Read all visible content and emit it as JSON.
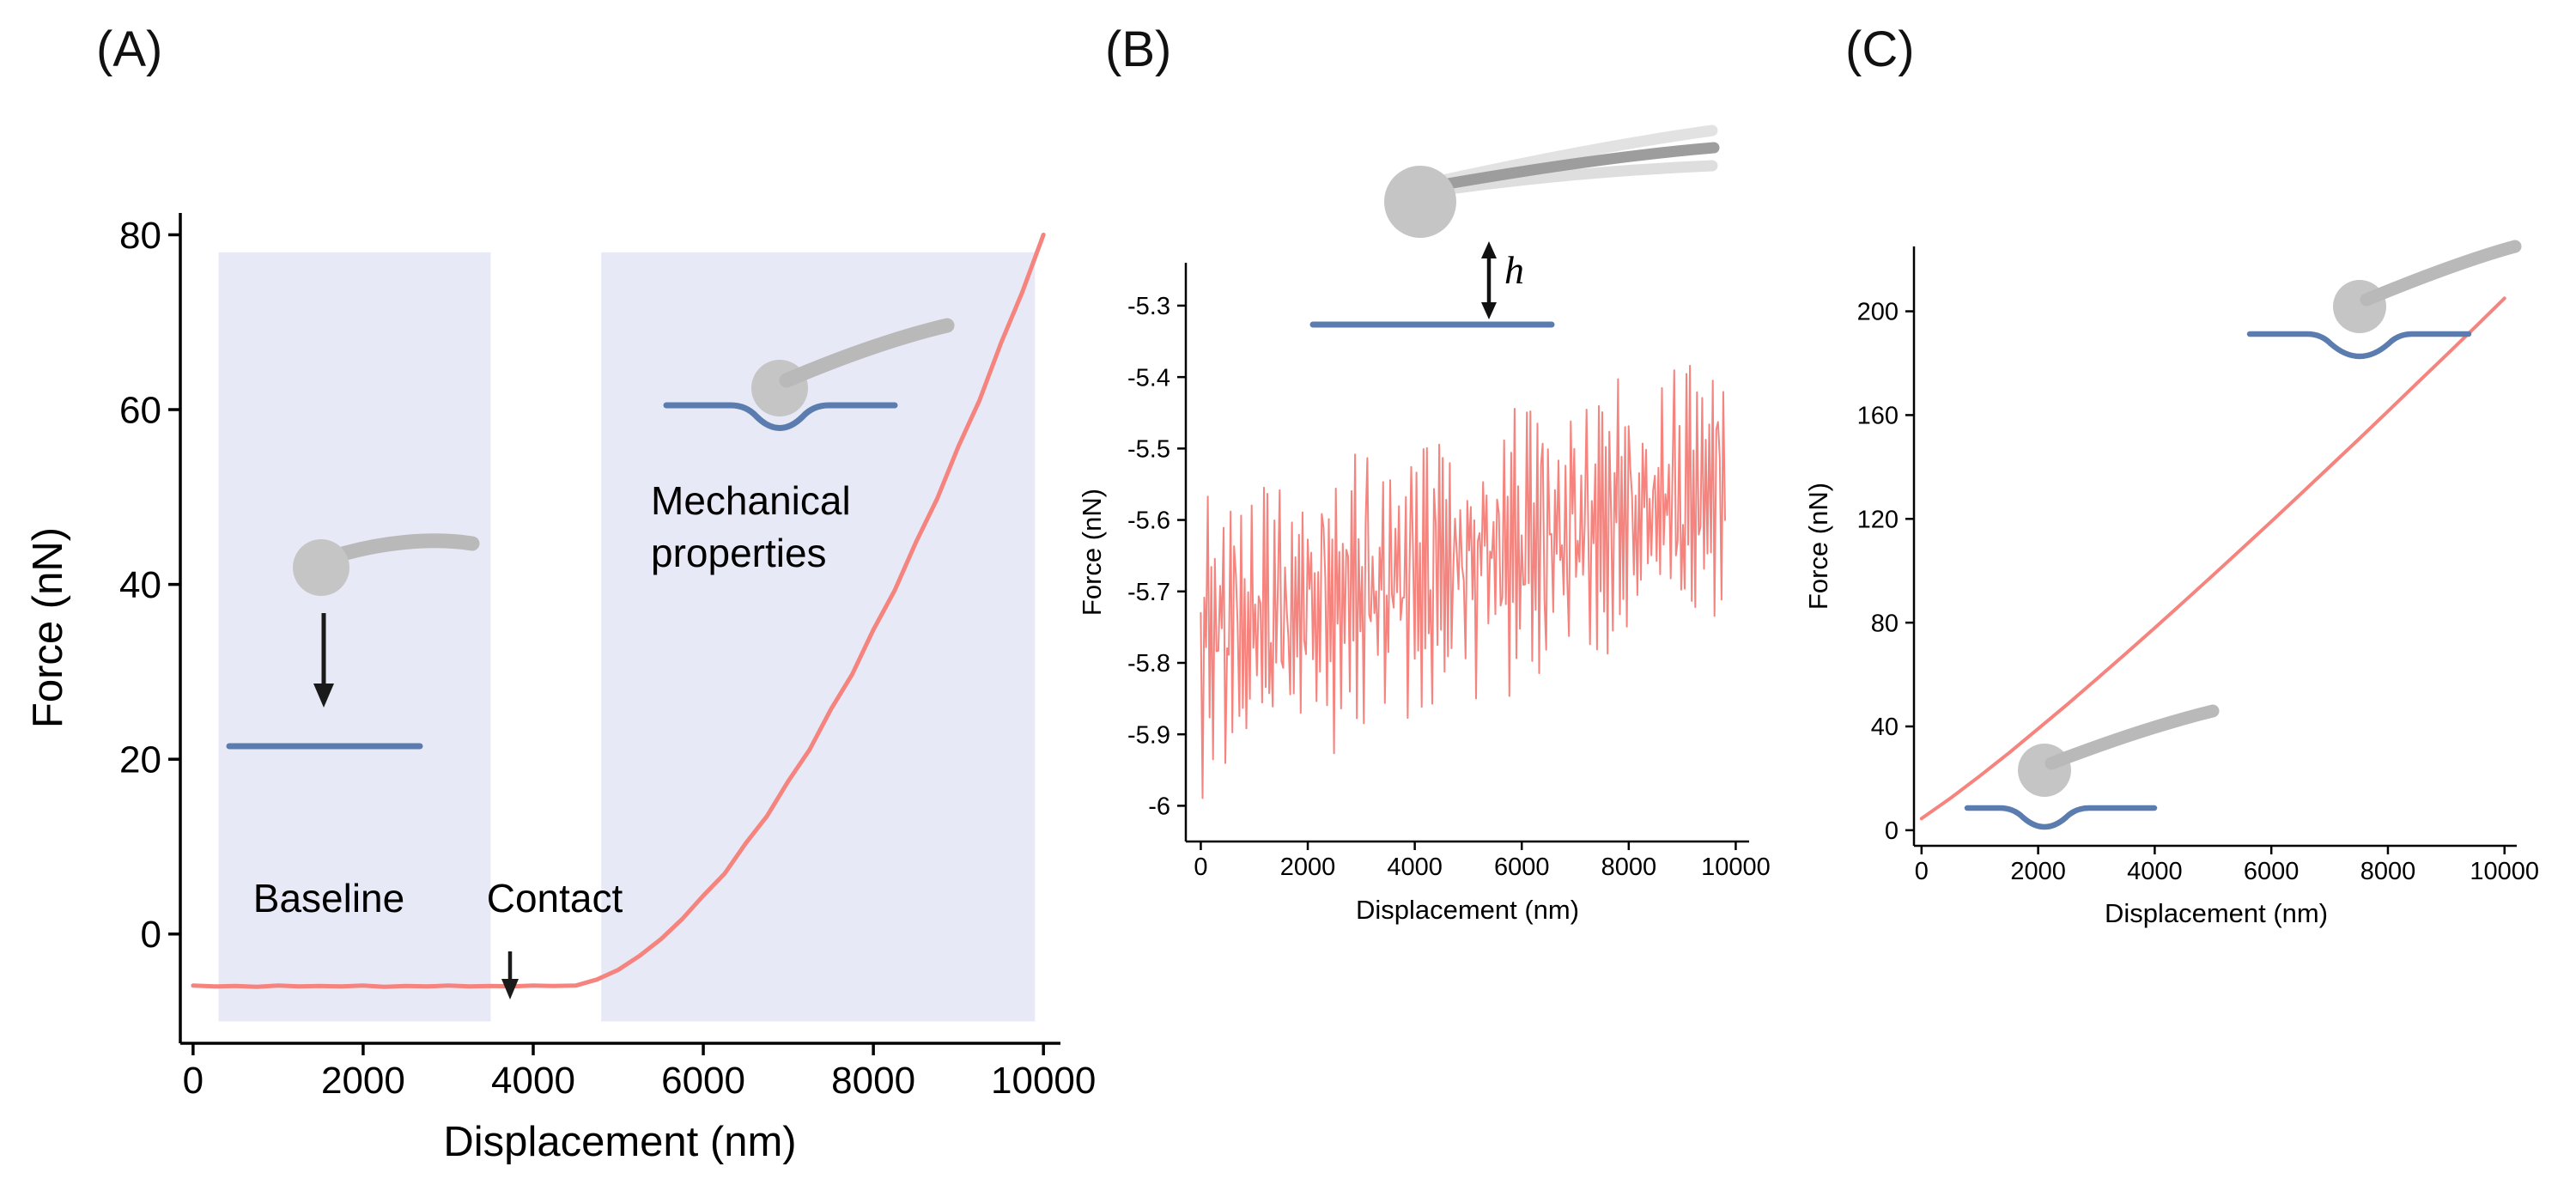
{
  "figure": {
    "background": "#ffffff",
    "colors": {
      "curve": "#f5837e",
      "shaded_region": "#e7eaf6",
      "surface_blue": "#5b7cae",
      "cantilever_gray": "#b9b9b9",
      "cantilever_ghost_gray": "#e2e2e2",
      "cantilever_dark_gray": "#9d9d9d",
      "sphere_gray": "#c5c5c5",
      "axis_black": "#000000"
    },
    "icons": {
      "panel_a": [
        "cantilever-sphere-approach-icon",
        "approach-down-arrow-icon",
        "flat-surface-line-icon",
        "cantilever-sphere-indent-icon",
        "indented-surface-curve-icon",
        "contact-down-arrow-icon"
      ],
      "panel_b": [
        "cantilever-sphere-vibrating-icon",
        "height-h-double-arrow-icon",
        "flat-surface-line-icon"
      ],
      "panel_c": [
        "cantilever-sphere-indent-icon",
        "indented-surface-curve-icon",
        "cantilever-sphere-resting-icon"
      ]
    }
  },
  "chart_data": [
    {
      "id": "A",
      "type": "line",
      "panel_label": "(A)",
      "xlabel": "Displacement (nm)",
      "ylabel": "Force (nN)",
      "xlim": [
        -150,
        10200
      ],
      "ylim": [
        -12.5,
        82.5
      ],
      "x_ticks": [
        0,
        2000,
        4000,
        6000,
        8000,
        10000
      ],
      "x_tick_labels": [
        "0",
        "2000",
        "4000",
        "6000",
        "8000",
        "10000"
      ],
      "y_ticks": [
        0,
        20,
        40,
        60,
        80
      ],
      "y_tick_labels": [
        "0",
        "20",
        "40",
        "60",
        "80"
      ],
      "grid": false,
      "line_color": "#f5837e",
      "shaded_regions": [
        {
          "name": "baseline",
          "x0": 300,
          "x1": 3500,
          "y0": -10,
          "y1": 78,
          "color": "#e7eaf6"
        },
        {
          "name": "mechanical-properties",
          "x0": 4800,
          "x1": 9900,
          "y0": -10,
          "y1": 78,
          "color": "#e7eaf6"
        }
      ],
      "annotations": {
        "baseline": "Baseline",
        "contact": "Contact",
        "mechanical_line1": "Mechanical",
        "mechanical_line2": "properties",
        "contact_point_x": 3750
      },
      "series": [
        {
          "name": "force-displacement-curve",
          "x": [
            0,
            250,
            500,
            750,
            1000,
            1250,
            1500,
            1750,
            2000,
            2250,
            2500,
            2750,
            3000,
            3250,
            3500,
            3750,
            4000,
            4250,
            4500,
            4750,
            5000,
            5250,
            5500,
            5750,
            6000,
            6250,
            6500,
            6750,
            7000,
            7250,
            7500,
            7750,
            8000,
            8250,
            8500,
            8750,
            9000,
            9250,
            9500,
            9750,
            10000
          ],
          "y": [
            -5.9,
            -6.0,
            -5.95,
            -6.05,
            -5.9,
            -6.0,
            -5.95,
            -6.0,
            -5.9,
            -6.05,
            -5.95,
            -6.0,
            -5.9,
            -6.0,
            -5.95,
            -6.0,
            -5.9,
            -5.95,
            -5.9,
            -5.2,
            -4.1,
            -2.5,
            -0.6,
            1.7,
            4.4,
            6.9,
            10.4,
            13.5,
            17.5,
            21.1,
            25.7,
            29.7,
            34.8,
            39.3,
            44.8,
            49.8,
            55.8,
            61.1,
            67.6,
            73.4,
            80.0
          ]
        }
      ]
    },
    {
      "id": "B",
      "type": "line",
      "panel_label": "(B)",
      "xlabel": "Displacement (nm)",
      "ylabel": "Force (nN)",
      "xlim": [
        -280,
        10250
      ],
      "ylim": [
        -6.05,
        -5.24
      ],
      "x_ticks": [
        0,
        2000,
        4000,
        6000,
        8000,
        10000
      ],
      "x_tick_labels": [
        "0",
        "2000",
        "4000",
        "6000",
        "8000",
        "10000"
      ],
      "y_ticks": [
        -5.3,
        -5.4,
        -5.5,
        -5.6,
        -5.7,
        -5.8,
        -5.9,
        -6.0
      ],
      "y_tick_labels": [
        "-5.3",
        "-5.4",
        "-5.5",
        "-5.6",
        "-5.7",
        "-5.8",
        "-5.9",
        "-6"
      ],
      "grid": false,
      "line_color": "#f5837e",
      "annotations": {
        "h": "h"
      },
      "series": [
        {
          "name": "noise-baseline-trace",
          "description": "noisy off-contact trace drifting from about -5.76 nN up to about -5.55 nN",
          "generator": {
            "n": 300,
            "x_start": 0,
            "x_end": 9800,
            "trend_start": -5.76,
            "trend_end": -5.55,
            "pattern_a": [
              0.02,
              -0.16,
              0.11,
              -0.05,
              0.13,
              -0.1,
              0.04,
              -0.13,
              0.08,
              0.0,
              -0.09,
              0.12,
              -0.04,
              0.13,
              -0.12,
              0.03,
              -0.07,
              0.1,
              -0.13,
              0.06,
              0.12,
              -0.02,
              -0.1,
              0.09,
              -0.06
            ],
            "pattern_b": [
              0.01,
              -0.07,
              -0.06,
              0.03,
              0.06,
              -0.02,
              0.05,
              -0.05,
              0.02,
              -0.03,
              0.06,
              -0.06,
              0.04
            ]
          }
        }
      ]
    },
    {
      "id": "C",
      "type": "line",
      "panel_label": "(C)",
      "xlabel": "Displacement (nm)",
      "ylabel": "Force (nN)",
      "xlim": [
        -130,
        10210
      ],
      "ylim": [
        -6,
        225
      ],
      "x_ticks": [
        0,
        2000,
        4000,
        6000,
        8000,
        10000
      ],
      "x_tick_labels": [
        "0",
        "2000",
        "4000",
        "6000",
        "8000",
        "10000"
      ],
      "y_ticks": [
        0,
        40,
        80,
        120,
        160,
        200
      ],
      "y_tick_labels": [
        "0",
        "40",
        "80",
        "120",
        "160",
        "200"
      ],
      "grid": false,
      "line_color": "#f5837e",
      "series": [
        {
          "name": "near-linear-force-curve",
          "x": [
            0,
            500,
            1000,
            1500,
            2000,
            2500,
            3000,
            3500,
            4000,
            4500,
            5000,
            5500,
            6000,
            6500,
            7000,
            7500,
            8000,
            8500,
            9000,
            9500,
            10000
          ],
          "y": [
            4.5,
            12.4,
            20.9,
            29.8,
            39.1,
            48.5,
            58.2,
            68.0,
            78.0,
            88.1,
            98.3,
            108.6,
            119.0,
            129.5,
            140.1,
            150.7,
            161.5,
            172.3,
            183.1,
            194.0,
            205.0
          ]
        }
      ]
    }
  ]
}
